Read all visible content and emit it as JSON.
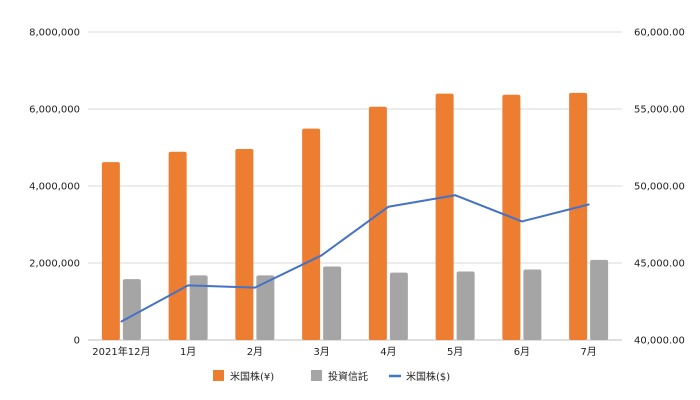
{
  "chart_data": {
    "type": "bar",
    "categories": [
      "2021年12月",
      "1月",
      "2月",
      "3月",
      "4月",
      "5月",
      "6月",
      "7月"
    ],
    "series": [
      {
        "name": "米国株(¥)",
        "kind": "bar",
        "axis": "left",
        "color": "#ED7D31",
        "values": [
          4620000,
          4890000,
          4960000,
          5490000,
          6060000,
          6400000,
          6370000,
          6420000
        ]
      },
      {
        "name": "投資信託",
        "kind": "bar",
        "axis": "left",
        "color": "#A5A5A5",
        "values": [
          1580000,
          1680000,
          1680000,
          1910000,
          1750000,
          1780000,
          1830000,
          2080000
        ]
      },
      {
        "name": "米国株($)",
        "kind": "line",
        "axis": "right",
        "color": "#4472C4",
        "values": [
          41200,
          43550,
          43400,
          45500,
          48650,
          49400,
          47700,
          48800
        ]
      }
    ],
    "left_axis": {
      "ylim": [
        0,
        8000000
      ],
      "ticks": [
        "0",
        "2,000,000",
        "4,000,000",
        "6,000,000",
        "8,000,000"
      ]
    },
    "right_axis": {
      "ylim": [
        40000,
        60000
      ],
      "ticks": [
        "40,000.00",
        "45,000.00",
        "50,000.00",
        "55,000.00",
        "60,000.00"
      ]
    },
    "grid": true,
    "legend_position": "bottom"
  }
}
